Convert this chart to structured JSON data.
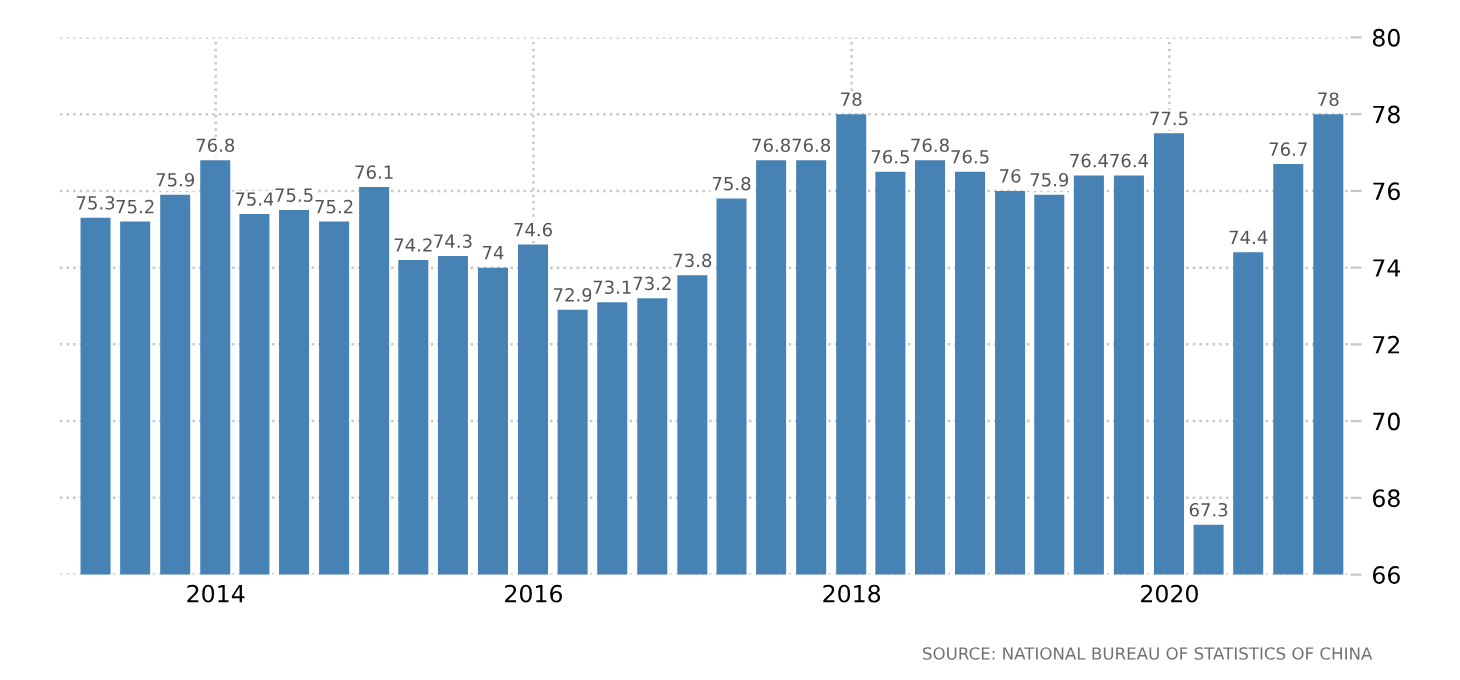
{
  "chart_data": {
    "type": "bar",
    "x": [
      "2013-03-31",
      "2013-06-30",
      "2013-09-30",
      "2013-12-31",
      "2014-03-31",
      "2014-06-30",
      "2014-09-30",
      "2014-12-31",
      "2015-03-31",
      "2015-06-30",
      "2015-09-30",
      "2015-12-31",
      "2016-03-31",
      "2016-06-30",
      "2016-09-30",
      "2016-12-31",
      "2017-03-31",
      "2017-06-30",
      "2017-09-30",
      "2017-12-31",
      "2018-03-31",
      "2018-06-30",
      "2018-09-30",
      "2018-12-31",
      "2019-03-31",
      "2019-06-30",
      "2019-09-30",
      "2019-12-31",
      "2020-03-31",
      "2020-06-30",
      "2020-09-30",
      "2020-12-31"
    ],
    "values": [
      75.3,
      75.2,
      75.9,
      76.8,
      75.4,
      75.5,
      75.2,
      76.1,
      74.2,
      74.3,
      74,
      74.6,
      72.9,
      73.1,
      73.2,
      73.8,
      75.8,
      76.8,
      76.8,
      78,
      76.5,
      76.8,
      76.5,
      76,
      75.9,
      76.4,
      76.4,
      77.5,
      67.3,
      74.4,
      76.7,
      78
    ],
    "color": "#4682b4",
    "data_labels": true,
    "xlim": [
      "2013-01-08",
      "2021-02-20"
    ],
    "xticks": [
      "2014",
      "2016",
      "2018",
      "2020"
    ],
    "ylim": [
      66,
      80
    ],
    "yticks": [
      66,
      68,
      70,
      72,
      74,
      76,
      78,
      80
    ],
    "grid": true,
    "annotations": [
      "SOURCE: NATIONAL BUREAU OF STATISTICS OF CHINA"
    ]
  }
}
